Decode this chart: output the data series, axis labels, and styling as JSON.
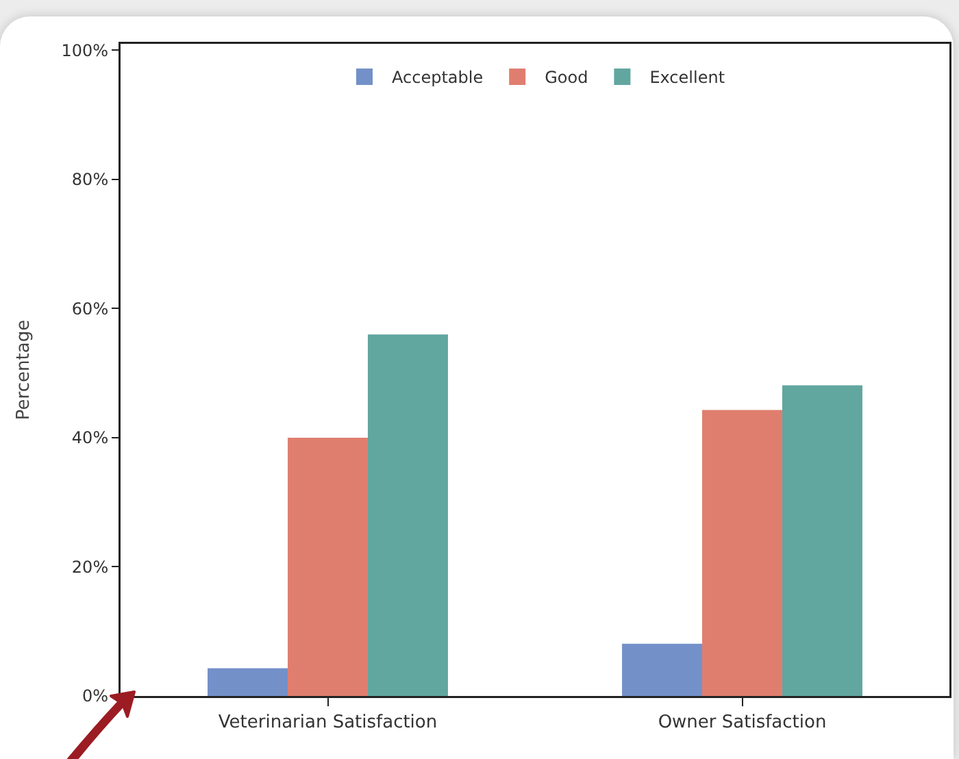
{
  "chart_data": {
    "type": "bar",
    "ylabel": "Percentage",
    "categories": [
      "Veterinarian Satisfaction",
      "Owner Satisfaction"
    ],
    "series": [
      {
        "name": "Acceptable",
        "color": "#7390c8",
        "values": [
          4.3,
          8.1
        ]
      },
      {
        "name": "Good",
        "color": "#df7e6f",
        "values": [
          40,
          44.3
        ]
      },
      {
        "name": "Excellent",
        "color": "#62a6a0",
        "values": [
          56,
          48.1
        ]
      }
    ],
    "ylim": [
      0,
      101
    ],
    "yticks": [
      {
        "value": 0,
        "label": "0%"
      },
      {
        "value": 20,
        "label": "20%"
      },
      {
        "value": 40,
        "label": "40%"
      },
      {
        "value": 60,
        "label": "60%"
      },
      {
        "value": 80,
        "label": "80%"
      },
      {
        "value": 100,
        "label": "100%"
      }
    ],
    "grid": false,
    "legend": "top"
  }
}
